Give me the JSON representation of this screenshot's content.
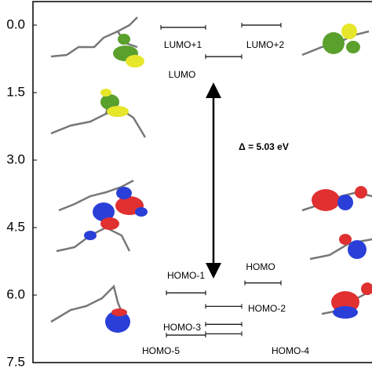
{
  "chart_data": {
    "type": "energy-level",
    "levels": [
      {
        "name": "LUMO+1",
        "value": 0.05
      },
      {
        "name": "LUMO+2",
        "value": 0.0
      },
      {
        "name": "LUMO",
        "value": 0.7
      },
      {
        "name": "HOMO",
        "value": 5.73
      },
      {
        "name": "HOMO-1",
        "value": 5.95
      },
      {
        "name": "HOMO-2",
        "value": 6.25
      },
      {
        "name": "HOMO-3",
        "value": 6.65
      },
      {
        "name": "HOMO-4",
        "value": 6.86
      },
      {
        "name": "HOMO-5",
        "value": 6.89
      }
    ],
    "annotation": "Δ = 5.03 eV",
    "ylim": [
      0,
      7.5
    ],
    "yticks": [
      {
        "value": 0,
        "label": "0.0"
      },
      1.5,
      {
        "value": 3,
        "label": "3.0"
      },
      4.5,
      {
        "value": 6,
        "label": "6.0"
      },
      7.5
    ],
    "color": "#000000"
  }
}
